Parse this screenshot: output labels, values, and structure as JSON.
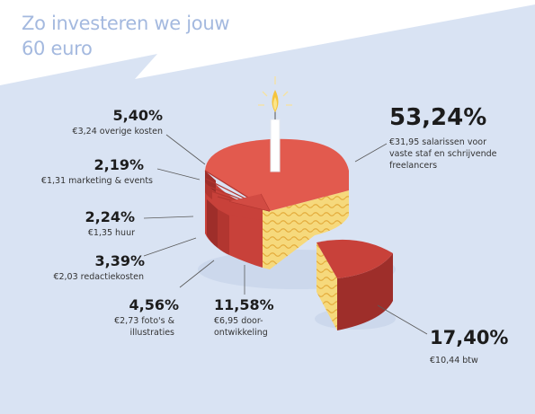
{
  "title_line1": "Zo investeren we jouw",
  "title_line2": "60 euro",
  "colors": {
    "background_band": "#d9e3f3",
    "cake_top": "#e25a4e",
    "cake_side": "#c8413a",
    "cake_dark": "#9e2e2a",
    "cream": "#f5d77a",
    "cream_wave": "#e8b23e",
    "title": "#a4b9df"
  },
  "chart_data": {
    "type": "pie",
    "title": "Zo investeren we jouw 60 euro",
    "slices": [
      {
        "label": "€31,95 salarissen voor vaste staf en schrijvende freelancers",
        "percent": 53.24,
        "amount_eur": 31.95
      },
      {
        "label": "€10,44 btw",
        "percent": 17.4,
        "amount_eur": 10.44
      },
      {
        "label": "€6,95 door-ontwikkeling",
        "percent": 11.58,
        "amount_eur": 6.95
      },
      {
        "label": "€3,24 overige kosten",
        "percent": 5.4,
        "amount_eur": 3.24
      },
      {
        "label": "€2,73 foto's & illustraties",
        "percent": 4.56,
        "amount_eur": 2.73
      },
      {
        "label": "€2,03 redactiekosten",
        "percent": 3.39,
        "amount_eur": 2.03
      },
      {
        "label": "€1,35 huur",
        "percent": 2.24,
        "amount_eur": 1.35
      },
      {
        "label": "€1,31 marketing & events",
        "percent": 2.19,
        "amount_eur": 1.31
      }
    ]
  },
  "labels": {
    "salaries": {
      "pct": "53,24%",
      "line1": "€31,95 salarissen voor",
      "line2": "vaste staf en schrijvende",
      "line3": "freelancers"
    },
    "btw": {
      "pct": "17,40%",
      "line1": "€10,44 btw"
    },
    "development": {
      "pct": "11,58%",
      "line1": "€6,95 door-",
      "line2": "ontwikkeling"
    },
    "photos": {
      "pct": "4,56%",
      "line1": "€2,73 foto's &",
      "line2": "illustraties"
    },
    "editorial": {
      "pct": "3,39%",
      "line1": "€2,03 redactiekosten"
    },
    "rent": {
      "pct": "2,24%",
      "line1": "€1,35 huur"
    },
    "marketing": {
      "pct": "2,19%",
      "line1": "€1,31 marketing & events"
    },
    "other": {
      "pct": "5,40%",
      "line1": "€3,24 overige kosten"
    }
  }
}
